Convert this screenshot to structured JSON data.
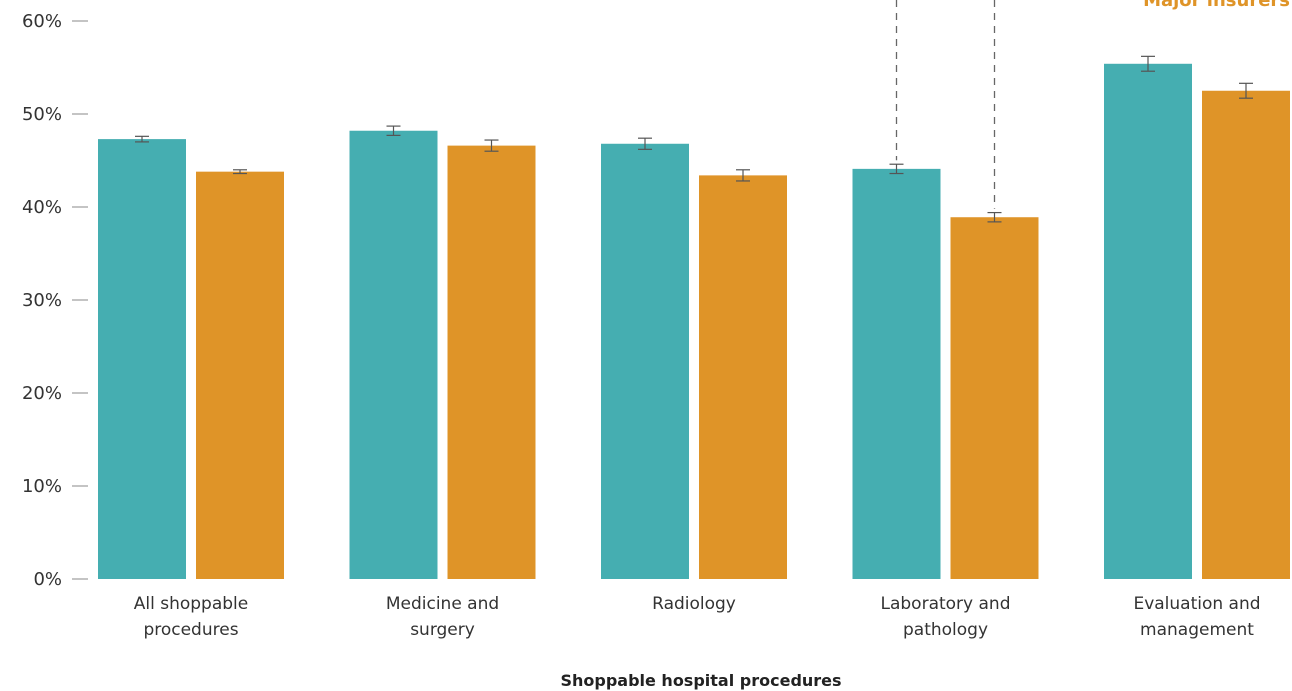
{
  "chart_data": {
    "type": "bar",
    "title": "",
    "xlabel": "Shoppable hospital procedures",
    "ylabel": "",
    "ylim": [
      0,
      60
    ],
    "yticks": [
      0,
      10,
      20,
      30,
      40,
      50,
      60
    ],
    "ytick_suffix": "%",
    "grid": false,
    "categories": [
      [
        "All shoppable",
        "procedures"
      ],
      [
        "Medicine and",
        "surgery"
      ],
      [
        "Radiology"
      ],
      [
        "Laboratory and",
        "pathology"
      ],
      [
        "Evaluation and",
        "management"
      ]
    ],
    "series": [
      {
        "name": "",
        "color": "#45aeb1",
        "values": [
          47.3,
          48.2,
          46.8,
          44.1,
          55.4
        ],
        "err_low": [
          47.0,
          47.7,
          46.2,
          43.6,
          54.6
        ],
        "err_high": [
          47.6,
          48.7,
          47.4,
          44.6,
          56.2
        ]
      },
      {
        "name": "Major insurers",
        "color": "#df9428",
        "values": [
          43.8,
          46.6,
          43.4,
          38.9,
          52.5
        ],
        "err_low": [
          43.6,
          46.0,
          42.8,
          38.4,
          51.7
        ],
        "err_high": [
          44.0,
          47.2,
          44.0,
          39.4,
          53.3
        ]
      }
    ],
    "legend": {
      "placement": "top-right",
      "label": "Major insurers"
    },
    "annotation": {
      "type": "dashed-bracket",
      "category_index": 3
    }
  }
}
